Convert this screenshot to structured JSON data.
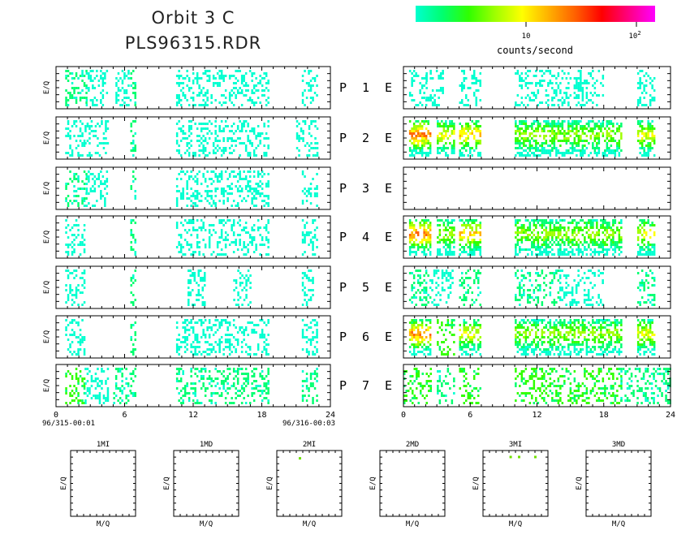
{
  "header": {
    "title_line1": "Orbit 3 C",
    "title_line2": "PLS96315.RDR"
  },
  "colorbar": {
    "colors": [
      "#00ffd0",
      "#00ff70",
      "#30ff00",
      "#a0ff00",
      "#ffff00",
      "#ffb000",
      "#ff6000",
      "#ff0000",
      "#ff0080",
      "#ff00ff"
    ],
    "tick_10": "10",
    "tick_100_base": "10",
    "tick_100_exp": "2",
    "label": "counts/second"
  },
  "panels": {
    "ylabel": "E/Q",
    "p_letter": "P",
    "e_letter": "E",
    "rows": [
      "1",
      "2",
      "3",
      "4",
      "5",
      "6",
      "7"
    ]
  },
  "time_axis": {
    "ticks": [
      "0",
      "6",
      "12",
      "18",
      "24"
    ],
    "start_label": "96/315-00:01",
    "end_label": "96/316-00:03"
  },
  "chart_data": {
    "type": "heatmap",
    "x_unit": "hours",
    "xlim": [
      0,
      24
    ],
    "color_scale": "log",
    "colorbar_label": "counts/second",
    "left_panels": [
      {
        "row": "1",
        "bands": [
          [
            0.8,
            2.6,
            1
          ],
          [
            2.6,
            4.5,
            0
          ],
          [
            5.2,
            6.5,
            0
          ],
          [
            6.5,
            7.0,
            1
          ],
          [
            10.5,
            18.5,
            0
          ],
          [
            21.5,
            22.8,
            0
          ]
        ]
      },
      {
        "row": "2",
        "bands": [
          [
            0.8,
            2.5,
            0
          ],
          [
            2.5,
            4.5,
            0
          ],
          [
            6.5,
            7.0,
            1
          ],
          [
            10.5,
            18.5,
            0
          ],
          [
            21.0,
            22.8,
            0
          ]
        ]
      },
      {
        "row": "3",
        "bands": [
          [
            0.8,
            2.6,
            1
          ],
          [
            2.6,
            4.5,
            0
          ],
          [
            6.5,
            7.0,
            1
          ],
          [
            10.5,
            18.5,
            0
          ],
          [
            21.5,
            22.8,
            0
          ]
        ]
      },
      {
        "row": "4",
        "bands": [
          [
            0.8,
            2.5,
            0
          ],
          [
            6.5,
            7.0,
            1
          ],
          [
            10.5,
            18.5,
            0
          ],
          [
            21.5,
            22.8,
            0
          ]
        ]
      },
      {
        "row": "5",
        "bands": [
          [
            0.8,
            2.5,
            0
          ],
          [
            6.5,
            7.0,
            1
          ],
          [
            11.5,
            13.0,
            0
          ],
          [
            15.5,
            17.0,
            0
          ],
          [
            21.5,
            22.5,
            0
          ]
        ]
      },
      {
        "row": "6",
        "bands": [
          [
            0.8,
            2.5,
            0
          ],
          [
            6.5,
            7.0,
            1
          ],
          [
            10.5,
            18.5,
            0
          ],
          [
            21.5,
            22.8,
            0
          ]
        ]
      },
      {
        "row": "7",
        "bands": [
          [
            0.8,
            2.5,
            2
          ],
          [
            2.5,
            4.5,
            0
          ],
          [
            5.0,
            6.5,
            1
          ],
          [
            6.5,
            7.0,
            1
          ],
          [
            10.5,
            18.5,
            1
          ],
          [
            21.5,
            22.8,
            1
          ]
        ]
      }
    ],
    "right_panels": [
      {
        "row": "1",
        "bands": [
          [
            0.5,
            2.0,
            0
          ],
          [
            2.0,
            3.5,
            0
          ],
          [
            5.0,
            7.0,
            0
          ],
          [
            10.0,
            18.0,
            0
          ],
          [
            21.0,
            22.5,
            0
          ]
        ]
      },
      {
        "row": "2",
        "bands": [
          [
            0.5,
            2.5,
            6
          ],
          [
            3.0,
            4.5,
            4
          ],
          [
            5.0,
            7.0,
            5
          ],
          [
            10.0,
            19.5,
            3
          ],
          [
            21.0,
            22.5,
            4
          ]
        ]
      },
      {
        "row": "3",
        "bands": []
      },
      {
        "row": "4",
        "bands": [
          [
            0.5,
            2.5,
            6
          ],
          [
            3.0,
            4.5,
            3
          ],
          [
            5.0,
            7.0,
            5
          ],
          [
            10.0,
            19.5,
            3
          ],
          [
            21.0,
            22.5,
            4
          ]
        ]
      },
      {
        "row": "5",
        "bands": [
          [
            0.5,
            2.5,
            1
          ],
          [
            2.5,
            4.5,
            0
          ],
          [
            5.0,
            7.0,
            1
          ],
          [
            10.0,
            14.0,
            1
          ],
          [
            14.0,
            18.0,
            0
          ],
          [
            21.0,
            22.5,
            1
          ]
        ]
      },
      {
        "row": "6",
        "bands": [
          [
            0.5,
            2.5,
            6
          ],
          [
            3.0,
            4.5,
            2
          ],
          [
            5.0,
            7.0,
            4
          ],
          [
            10.0,
            19.5,
            3
          ],
          [
            21.0,
            22.5,
            4
          ]
        ]
      },
      {
        "row": "7",
        "bands": [
          [
            0.0,
            2.5,
            2
          ],
          [
            3.0,
            4.5,
            1
          ],
          [
            5.0,
            7.0,
            2
          ],
          [
            10.0,
            19.5,
            2
          ],
          [
            19.5,
            24.0,
            1
          ]
        ]
      }
    ],
    "mass_panels": [
      {
        "title": "1MI",
        "xlabel": "M/Q",
        "ylabel": "E/Q",
        "points": []
      },
      {
        "title": "1MD",
        "xlabel": "M/Q",
        "ylabel": "E/Q",
        "points": []
      },
      {
        "title": "2MI",
        "xlabel": "M/Q",
        "ylabel": "E/Q",
        "points": [
          [
            0.35,
            0.9
          ]
        ]
      },
      {
        "title": "2MD",
        "xlabel": "M/Q",
        "ylabel": "E/Q",
        "points": []
      },
      {
        "title": "3MI",
        "xlabel": "M/Q",
        "ylabel": "E/Q",
        "points": [
          [
            0.42,
            0.92
          ],
          [
            0.55,
            0.92
          ],
          [
            0.8,
            0.92
          ]
        ]
      },
      {
        "title": "3MD",
        "xlabel": "M/Q",
        "ylabel": "E/Q",
        "points": []
      }
    ]
  }
}
